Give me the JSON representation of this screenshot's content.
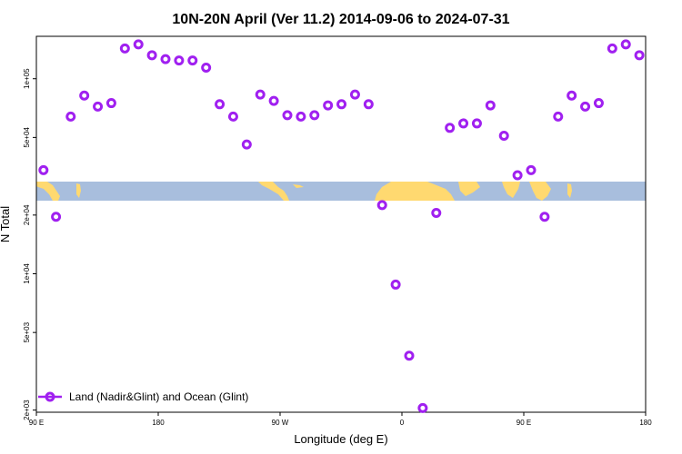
{
  "chart_data": {
    "type": "scatter",
    "title": "10N-20N April (Ver 11.2)   2014-09-06 to 2024-07-31",
    "xlabel": "Longitude (deg E)",
    "ylabel": "N Total",
    "x_tick_labels": [
      "90 E",
      "180",
      "90 W",
      "0",
      "90 E",
      "180"
    ],
    "y_tick_labels": [
      "2e+03",
      "5e+03",
      "1e+04",
      "2e+04",
      "5e+04",
      "1e+05"
    ],
    "y_scale": "log",
    "xlim": [
      90,
      450
    ],
    "ylim": [
      1950,
      165000
    ],
    "grid": false,
    "legend": "bottom-left",
    "marker_color": "#a020f0",
    "land_color": "#ffd970",
    "ocean_color": "#a8bedd",
    "series": [
      {
        "name": "Land (Nadir&Glint) and Ocean (Glint)",
        "x": [
          94.2,
          101.6,
          110.3,
          118.3,
          126.3,
          134.3,
          142.3,
          150.3,
          158.3,
          166.3,
          174.3,
          182.3,
          190.3,
          198.3,
          206.3,
          214.3,
          222.3,
          230.3,
          238.3,
          246.3,
          254.3,
          262.3,
          270.3,
          278.3,
          286.3,
          294.3,
          302.3,
          310.3,
          318.3,
          326.3,
          334.3,
          342.3,
          350.3,
          358.3,
          366.3,
          374.3,
          382.3,
          390.3,
          398.3,
          406.3,
          414.3,
          422.3,
          430.3,
          438.3,
          446.3
        ],
        "y": [
          34000,
          19600,
          64000,
          82000,
          72000,
          75000,
          143000,
          150000,
          132000,
          126000,
          124000,
          124000,
          114000,
          74000,
          64000,
          46000,
          83000,
          77000,
          65000,
          64000,
          65000,
          73000,
          74000,
          83000,
          74000,
          22500,
          8800,
          3800,
          2050,
          20500,
          56000,
          59000,
          59000,
          73000,
          51000,
          32000,
          34000,
          19600,
          64000,
          82000,
          72000,
          75000,
          143000,
          150000,
          132000
        ]
      }
    ]
  }
}
